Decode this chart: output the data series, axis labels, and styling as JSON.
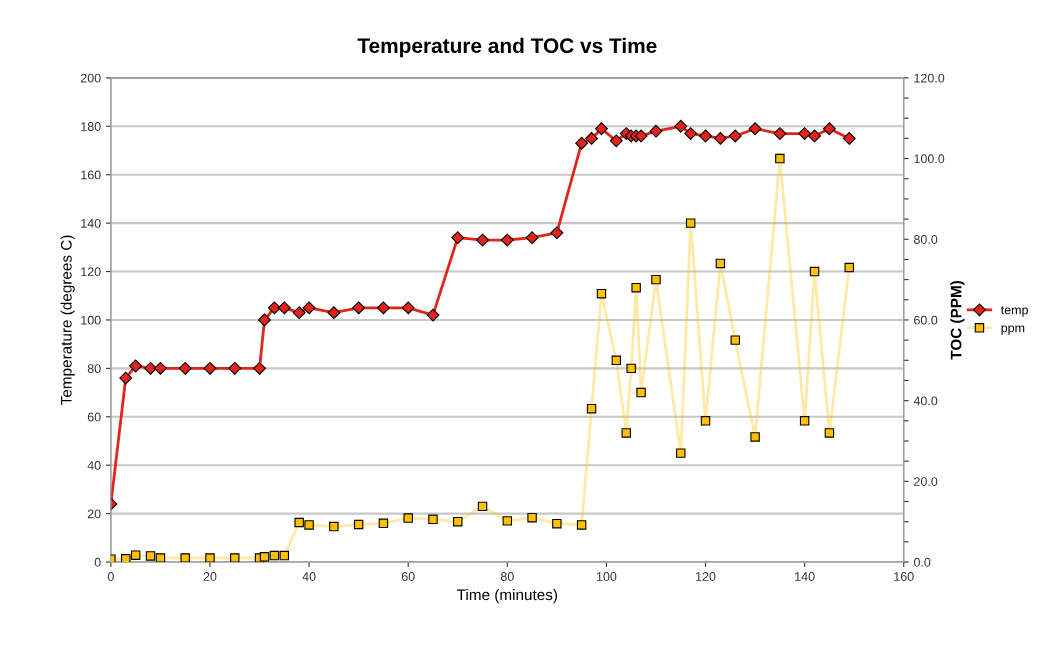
{
  "chart_data": {
    "type": "line",
    "title": "Temperature and TOC vs Time",
    "xlabel": "Time (minutes)",
    "ylabel": "Temperature (degrees C)",
    "y2label": "TOC (PPM)",
    "xlim": [
      0,
      160
    ],
    "xticks": [
      0,
      20,
      40,
      60,
      80,
      100,
      120,
      140,
      160
    ],
    "ylim": [
      0,
      200
    ],
    "yticks": [
      0,
      20,
      40,
      60,
      80,
      100,
      120,
      140,
      160,
      180,
      200
    ],
    "y2lim": [
      0,
      120
    ],
    "y2ticks": [
      {
        "value": 0,
        "label": "0.0"
      },
      {
        "value": 5,
        "label": null
      },
      {
        "value": 10,
        "label": null
      },
      {
        "value": 15,
        "label": null
      },
      {
        "value": 20,
        "label": "20.0"
      },
      {
        "value": 25,
        "label": null
      },
      {
        "value": 30,
        "label": null
      },
      {
        "value": 35,
        "label": null
      },
      {
        "value": 40,
        "label": "40.0"
      },
      {
        "value": 45,
        "label": null
      },
      {
        "value": 50,
        "label": null
      },
      {
        "value": 55,
        "label": null
      },
      {
        "value": 60,
        "label": "60.0"
      },
      {
        "value": 65,
        "label": null
      },
      {
        "value": 70,
        "label": null
      },
      {
        "value": 75,
        "label": null
      },
      {
        "value": 80,
        "label": "80.0"
      },
      {
        "value": 85,
        "label": null
      },
      {
        "value": 90,
        "label": null
      },
      {
        "value": 95,
        "label": null
      },
      {
        "value": 100,
        "label": "100.0"
      },
      {
        "value": 105,
        "label": null
      },
      {
        "value": 110,
        "label": null
      },
      {
        "value": 115,
        "label": null
      },
      {
        "value": 120,
        "label": "120.0"
      }
    ],
    "grid": "y",
    "legend": "right",
    "series": [
      {
        "name": "temp",
        "color": "#e3241b",
        "marker": "diamond",
        "x": [
          0,
          3,
          5,
          8,
          10,
          15,
          20,
          25,
          30,
          31,
          33,
          35,
          38,
          40,
          45,
          50,
          55,
          60,
          65,
          70,
          75,
          80,
          85,
          90,
          95,
          97,
          99,
          102,
          104,
          105,
          106,
          107,
          110,
          115,
          117,
          120,
          123,
          126,
          130,
          135,
          140,
          142,
          145,
          149
        ],
        "values": [
          24,
          76,
          81,
          80,
          80,
          80,
          80,
          80,
          80,
          100,
          105,
          105,
          103,
          105,
          103,
          105,
          105,
          105,
          102,
          134,
          133,
          133,
          134,
          136,
          173,
          175,
          179,
          174,
          177,
          176,
          176,
          176,
          178,
          180,
          177,
          176,
          175,
          176,
          179,
          177,
          177,
          176,
          179,
          175
        ]
      },
      {
        "name": "ppm",
        "color": "#ffc000",
        "marker": "square",
        "axis": "y2",
        "x": [
          0,
          3,
          5,
          8,
          10,
          15,
          20,
          25,
          30,
          31,
          33,
          35,
          38,
          40,
          45,
          50,
          55,
          60,
          65,
          70,
          75,
          80,
          85,
          90,
          95,
          97,
          99,
          102,
          104,
          105,
          106,
          107,
          110,
          115,
          117,
          120,
          123,
          126,
          130,
          135,
          140,
          142,
          145,
          149
        ],
        "values": [
          0.7,
          0.8,
          1.7,
          1.5,
          1.0,
          1.0,
          1.0,
          1.0,
          1.0,
          1.3,
          1.6,
          1.6,
          9.8,
          9.2,
          8.8,
          9.3,
          9.6,
          10.9,
          10.6,
          10.0,
          13.8,
          10.2,
          11.0,
          9.5,
          9.2,
          38,
          66.5,
          50,
          32,
          48,
          68,
          42,
          70,
          27,
          84,
          35,
          74,
          55,
          31,
          100,
          35,
          72,
          32,
          73
        ]
      }
    ]
  }
}
